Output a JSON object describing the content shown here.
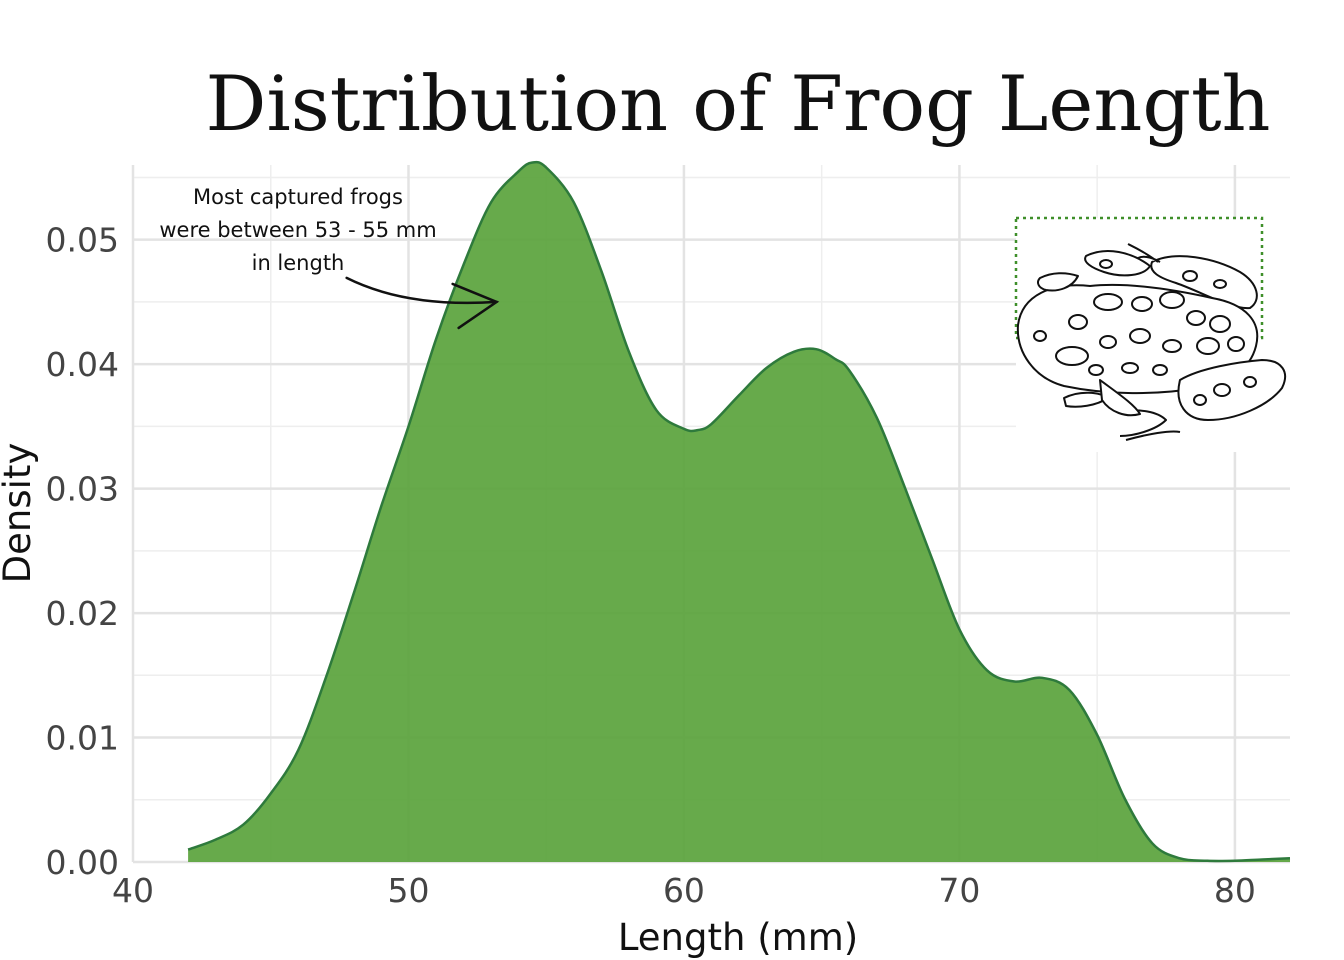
{
  "chart_data": {
    "type": "area",
    "title": "Distribution of Frog Length",
    "xlabel": "Length (mm)",
    "ylabel": "Density",
    "xlim": [
      40,
      82
    ],
    "ylim": [
      0,
      0.056
    ],
    "xticks": [
      40,
      50,
      60,
      70,
      80
    ],
    "xtick_labels": [
      "40",
      "50",
      "60",
      "70",
      "80"
    ],
    "yticks": [
      0.0,
      0.01,
      0.02,
      0.03,
      0.04,
      0.05
    ],
    "ytick_labels": [
      "0.00",
      "0.01",
      "0.02",
      "0.03",
      "0.04",
      "0.05"
    ],
    "grid": true,
    "fill_color": "#5aa33c",
    "line_color": "#2e7a3c",
    "series": [
      {
        "x": [
          42,
          43,
          44,
          45,
          46,
          47,
          48,
          49,
          50,
          51,
          52,
          53,
          54,
          54.5,
          55,
          56,
          57,
          58,
          59,
          60,
          60.5,
          61,
          62,
          63,
          64,
          64.8,
          65.5,
          66,
          67,
          68,
          69,
          70,
          71,
          72,
          73,
          74,
          75,
          76,
          77,
          78,
          79,
          80,
          81,
          82
        ],
        "y": [
          0.001,
          0.0018,
          0.003,
          0.0055,
          0.009,
          0.0148,
          0.0215,
          0.0285,
          0.035,
          0.042,
          0.048,
          0.053,
          0.0555,
          0.0562,
          0.0558,
          0.053,
          0.0475,
          0.041,
          0.0363,
          0.0348,
          0.0347,
          0.0352,
          0.0375,
          0.0397,
          0.041,
          0.0412,
          0.0404,
          0.0395,
          0.0357,
          0.0302,
          0.0244,
          0.0187,
          0.0154,
          0.0145,
          0.0148,
          0.0138,
          0.0102,
          0.0051,
          0.0015,
          0.0003,
          0.0001,
          0.0001,
          0.0002,
          0.0003
        ]
      }
    ],
    "annotation": {
      "lines": [
        "Most captured frogs",
        "were between 53 - 55 mm",
        "in length"
      ],
      "arrow_to": [
        53.2,
        0.045
      ]
    }
  }
}
